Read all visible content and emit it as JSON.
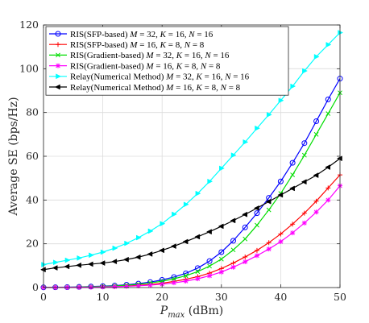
{
  "chart_data": {
    "type": "line",
    "xlabel": "P_max (dBm)",
    "xlabel_main": "P",
    "xlabel_sub": "max",
    "xlabel_unit": " (dBm)",
    "ylabel": "Average SE (bps/Hz)",
    "xlim": [
      0,
      50
    ],
    "ylim": [
      0,
      120
    ],
    "xticks": [
      0,
      10,
      20,
      30,
      40,
      50
    ],
    "yticks": [
      0,
      20,
      40,
      60,
      80,
      100,
      120
    ],
    "grid": true,
    "legend_position": "top-left",
    "x": [
      0,
      2,
      4,
      6,
      8,
      10,
      12,
      14,
      16,
      18,
      20,
      22,
      24,
      26,
      28,
      30,
      32,
      34,
      36,
      38,
      40,
      42,
      44,
      46,
      48,
      50
    ],
    "series": [
      {
        "name": "RIS(SFP-based) M = 32, K = 16, N = 16",
        "color": "#0000ff",
        "marker": "circle",
        "values": [
          0.1,
          0.15,
          0.2,
          0.3,
          0.45,
          0.65,
          0.9,
          1.3,
          1.8,
          2.5,
          3.5,
          4.8,
          6.5,
          8.9,
          12.1,
          16.2,
          21.4,
          27.5,
          34,
          41,
          48.5,
          57,
          66,
          76,
          86,
          95.5
        ]
      },
      {
        "name": "RIS(SFP-based) M = 16, K = 8, N = 8",
        "color": "#ff0000",
        "marker": "plus",
        "values": [
          0.05,
          0.08,
          0.12,
          0.18,
          0.25,
          0.35,
          0.5,
          0.7,
          1,
          1.4,
          2,
          2.8,
          3.8,
          5,
          6.6,
          8.7,
          11.2,
          14,
          17,
          20.5,
          24.5,
          29,
          34,
          39.5,
          45.5,
          51.5
        ]
      },
      {
        "name": "RIS(Gradient-based) M = 32, K = 16, N = 16",
        "color": "#00dd00",
        "marker": "x",
        "values": [
          0.08,
          0.12,
          0.17,
          0.25,
          0.37,
          0.53,
          0.75,
          1.05,
          1.5,
          2.1,
          2.9,
          4,
          5.4,
          7.3,
          9.8,
          13,
          17.2,
          22.2,
          28.5,
          35.5,
          43,
          51.5,
          60.5,
          70,
          79.5,
          89
        ]
      },
      {
        "name": "RIS(Gradient-based) M = 16, K = 8, N = 8",
        "color": "#ff00ff",
        "marker": "star",
        "values": [
          0.04,
          0.06,
          0.09,
          0.14,
          0.2,
          0.28,
          0.4,
          0.56,
          0.8,
          1.1,
          1.55,
          2.15,
          2.95,
          4,
          5.4,
          7.1,
          9.3,
          11.8,
          14.6,
          17.6,
          21,
          25,
          29.5,
          34.5,
          40,
          46.5
        ]
      },
      {
        "name": "Relay(Numerical Method) M = 32, K = 16, N = 16",
        "color": "#00ffff",
        "marker": "triangle-right",
        "values": [
          10.5,
          11.5,
          12.5,
          13.5,
          14.8,
          16.2,
          18,
          20.2,
          22.8,
          25.8,
          29.2,
          33.5,
          38,
          43,
          48.5,
          54.5,
          60.5,
          66.5,
          72.8,
          79,
          85.5,
          92,
          99,
          105.5,
          111,
          116.5
        ]
      },
      {
        "name": "Relay(Numerical Method) M = 16, K = 8, N = 8",
        "color": "#000000",
        "marker": "triangle-left",
        "values": [
          8.2,
          9,
          9.6,
          10.2,
          10.7,
          11.2,
          11.9,
          12.8,
          13.9,
          15.3,
          17,
          18.9,
          21,
          23.2,
          25.5,
          28,
          30.6,
          33.4,
          36.3,
          39.3,
          42.3,
          45.3,
          48.3,
          51.3,
          55,
          59
        ]
      }
    ],
    "legend_entries": [
      {
        "label": "RIS(SFP-based)",
        "params": "M = 32, K = 16, N = 16"
      },
      {
        "label": "RIS(SFP-based)",
        "params": "M = 16, K = 8, N = 8"
      },
      {
        "label": "RIS(Gradient-based)",
        "params": "M = 32, K = 16, N = 16"
      },
      {
        "label": "RIS(Gradient-based)",
        "params": "M = 16, K = 8, N = 8"
      },
      {
        "label": "Relay(Numerical Method)",
        "params": "M = 32, K = 16, N = 16"
      },
      {
        "label": "Relay(Numerical Method)",
        "params": "M = 16, K = 8, N = 8"
      }
    ]
  }
}
